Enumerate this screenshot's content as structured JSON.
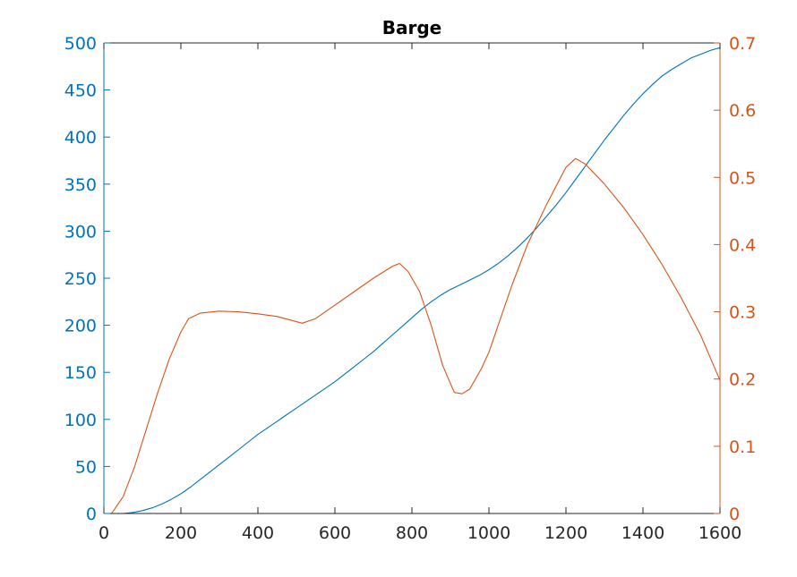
{
  "chart_data": {
    "type": "line",
    "title": "Barge",
    "xlabel": "",
    "ylabel_left": "",
    "ylabel_right": "",
    "xlim": [
      0,
      1600
    ],
    "ylim_left": [
      0,
      500
    ],
    "ylim_right": [
      0,
      0.7
    ],
    "grid": false,
    "legend": "none",
    "x_ticks": [
      "0",
      "200",
      "400",
      "600",
      "800",
      "1000",
      "1200",
      "1400",
      "1600"
    ],
    "y_left_ticks": [
      "0",
      "50",
      "100",
      "150",
      "200",
      "250",
      "300",
      "350",
      "400",
      "450",
      "500"
    ],
    "y_right_ticks": [
      "0",
      "0.1",
      "0.2",
      "0.3",
      "0.4",
      "0.5",
      "0.6",
      "0.7"
    ],
    "colors": {
      "left": "#0072BD",
      "right": "#D95319",
      "axes": "#262626"
    },
    "series": [
      {
        "axis": "left",
        "color": "#0072BD",
        "x": [
          50,
          75,
          100,
          125,
          150,
          175,
          200,
          225,
          250,
          275,
          300,
          325,
          350,
          375,
          400,
          425,
          450,
          475,
          500,
          525,
          550,
          575,
          600,
          625,
          650,
          675,
          700,
          725,
          750,
          775,
          800,
          825,
          850,
          875,
          900,
          925,
          950,
          975,
          1000,
          1025,
          1050,
          1075,
          1100,
          1125,
          1150,
          1175,
          1200,
          1225,
          1250,
          1275,
          1300,
          1325,
          1350,
          1375,
          1400,
          1425,
          1450,
          1475,
          1500,
          1525,
          1550,
          1575,
          1600
        ],
        "y": [
          0,
          1,
          3,
          6,
          10,
          15,
          21,
          28,
          36,
          44,
          52,
          60,
          68,
          76,
          84,
          91,
          98,
          105,
          112,
          119,
          126,
          133,
          140,
          148,
          156,
          164,
          172,
          181,
          190,
          199,
          208,
          217,
          225,
          232,
          238,
          243,
          248,
          253,
          259,
          266,
          274,
          283,
          293,
          304,
          316,
          328,
          341,
          355,
          369,
          383,
          397,
          410,
          423,
          435,
          446,
          456,
          465,
          472,
          478,
          484,
          488,
          492,
          495
        ]
      },
      {
        "axis": "right",
        "color": "#D95319",
        "x": [
          20,
          50,
          80,
          110,
          140,
          170,
          200,
          220,
          250,
          300,
          350,
          400,
          450,
          515,
          550,
          600,
          650,
          700,
          750,
          768,
          790,
          820,
          850,
          880,
          910,
          930,
          950,
          980,
          1000,
          1030,
          1060,
          1100,
          1150,
          1200,
          1225,
          1250,
          1300,
          1350,
          1400,
          1450,
          1500,
          1550,
          1600
        ],
        "y": [
          0,
          0.025,
          0.07,
          0.125,
          0.18,
          0.23,
          0.27,
          0.29,
          0.298,
          0.301,
          0.3,
          0.297,
          0.293,
          0.283,
          0.29,
          0.31,
          0.33,
          0.35,
          0.368,
          0.372,
          0.36,
          0.33,
          0.28,
          0.22,
          0.18,
          0.178,
          0.185,
          0.215,
          0.24,
          0.29,
          0.34,
          0.4,
          0.46,
          0.515,
          0.528,
          0.52,
          0.49,
          0.455,
          0.415,
          0.37,
          0.32,
          0.265,
          0.198
        ]
      }
    ]
  }
}
